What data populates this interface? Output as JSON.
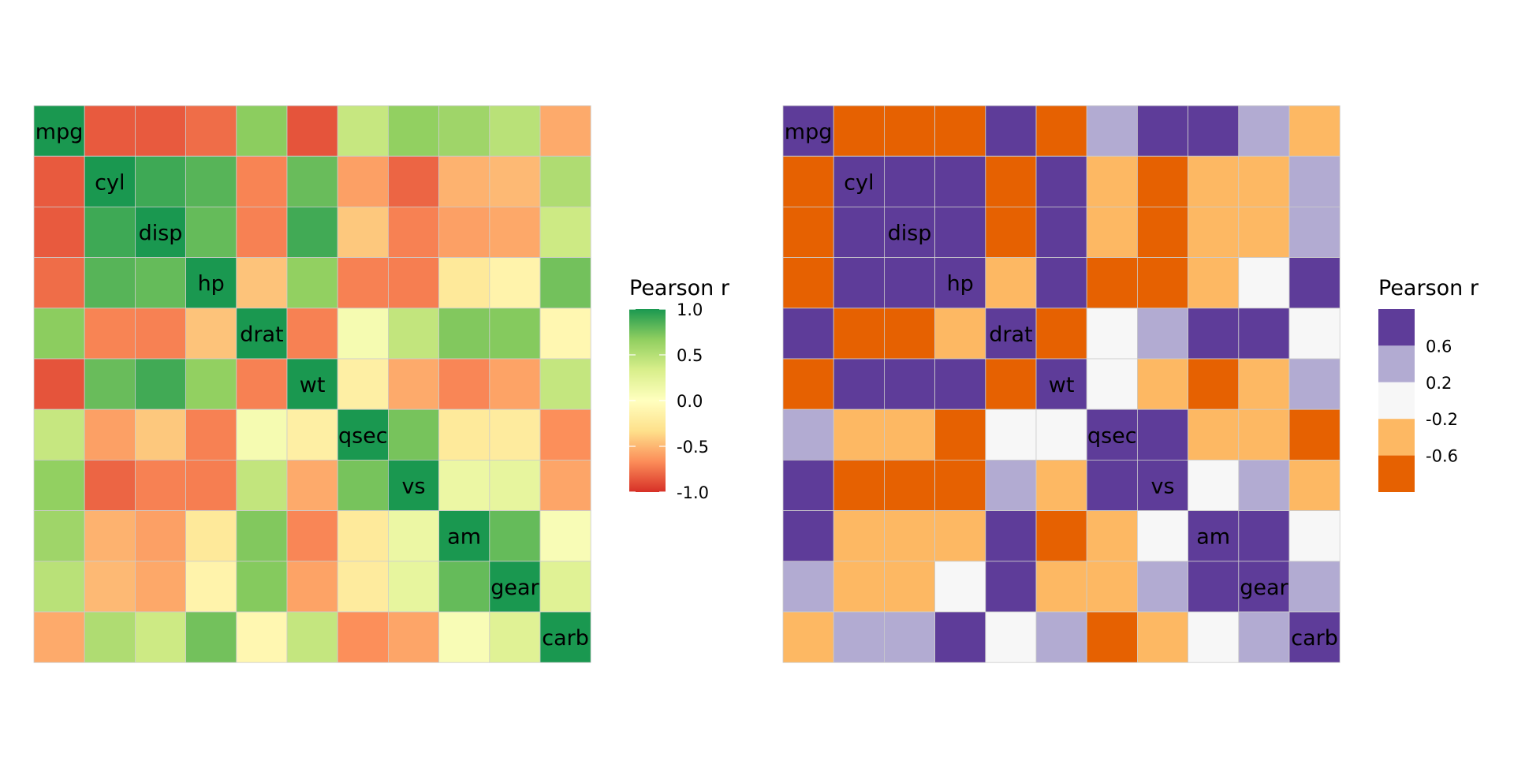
{
  "chart_data": [
    {
      "type": "heatmap",
      "title": "",
      "xlabel": "",
      "ylabel": "",
      "variables": [
        "mpg",
        "cyl",
        "disp",
        "hp",
        "drat",
        "wt",
        "qsec",
        "vs",
        "am",
        "gear",
        "carb"
      ],
      "matrix": [
        [
          1.0,
          -0.85,
          -0.85,
          -0.78,
          0.68,
          -0.87,
          0.42,
          0.66,
          0.6,
          0.48,
          -0.55
        ],
        [
          -0.85,
          1.0,
          0.9,
          0.83,
          -0.7,
          0.78,
          -0.59,
          -0.81,
          -0.52,
          -0.49,
          0.53
        ],
        [
          -0.85,
          0.9,
          1.0,
          0.79,
          -0.71,
          0.89,
          -0.43,
          -0.71,
          -0.59,
          -0.56,
          0.39
        ],
        [
          -0.78,
          0.83,
          0.79,
          1.0,
          -0.45,
          0.66,
          -0.71,
          -0.72,
          -0.24,
          -0.13,
          0.75
        ],
        [
          0.68,
          -0.7,
          -0.71,
          -0.45,
          1.0,
          -0.71,
          0.09,
          0.44,
          0.71,
          0.7,
          -0.09
        ],
        [
          -0.87,
          0.78,
          0.89,
          0.66,
          -0.71,
          1.0,
          -0.17,
          -0.55,
          -0.69,
          -0.58,
          0.43
        ],
        [
          0.42,
          -0.59,
          -0.43,
          -0.71,
          0.09,
          -0.17,
          1.0,
          0.74,
          -0.23,
          -0.21,
          -0.66
        ],
        [
          0.66,
          -0.81,
          -0.71,
          -0.72,
          0.44,
          -0.55,
          0.74,
          1.0,
          0.17,
          0.21,
          -0.57
        ],
        [
          0.6,
          -0.52,
          -0.59,
          -0.24,
          0.71,
          -0.69,
          -0.23,
          0.17,
          1.0,
          0.79,
          0.06
        ],
        [
          0.48,
          -0.49,
          -0.56,
          -0.13,
          0.7,
          -0.58,
          -0.21,
          0.21,
          0.79,
          1.0,
          0.27
        ],
        [
          -0.55,
          0.53,
          0.39,
          0.75,
          -0.09,
          0.43,
          -0.66,
          -0.57,
          0.06,
          0.27,
          1.0
        ]
      ],
      "color_scale": "continuous",
      "palette": [
        "#d73027",
        "#fc8d59",
        "#fee08b",
        "#ffffbf",
        "#d9ef8b",
        "#91cf60",
        "#1a9850"
      ],
      "legend": {
        "title": "Pearson r",
        "placement": "right",
        "ticks": [
          "1.0",
          "0.5",
          "0.0",
          "-0.5",
          "-1.0"
        ],
        "tick_values": [
          1.0,
          0.5,
          0.0,
          -0.5,
          -1.0
        ],
        "range": [
          -1.0,
          1.0
        ]
      },
      "grid": false
    },
    {
      "type": "heatmap",
      "title": "",
      "xlabel": "",
      "ylabel": "",
      "variables": [
        "mpg",
        "cyl",
        "disp",
        "hp",
        "drat",
        "wt",
        "qsec",
        "vs",
        "am",
        "gear",
        "carb"
      ],
      "matrix": [
        [
          1.0,
          -0.85,
          -0.85,
          -0.78,
          0.68,
          -0.87,
          0.42,
          0.66,
          0.6,
          0.48,
          -0.55
        ],
        [
          -0.85,
          1.0,
          0.9,
          0.83,
          -0.7,
          0.78,
          -0.59,
          -0.81,
          -0.52,
          -0.49,
          0.53
        ],
        [
          -0.85,
          0.9,
          1.0,
          0.79,
          -0.71,
          0.89,
          -0.43,
          -0.71,
          -0.59,
          -0.56,
          0.39
        ],
        [
          -0.78,
          0.83,
          0.79,
          1.0,
          -0.45,
          0.66,
          -0.71,
          -0.72,
          -0.24,
          -0.13,
          0.75
        ],
        [
          0.68,
          -0.7,
          -0.71,
          -0.45,
          1.0,
          -0.71,
          0.09,
          0.44,
          0.71,
          0.7,
          -0.09
        ],
        [
          -0.87,
          0.78,
          0.89,
          0.66,
          -0.71,
          1.0,
          -0.17,
          -0.55,
          -0.69,
          -0.58,
          0.43
        ],
        [
          0.42,
          -0.59,
          -0.43,
          -0.71,
          0.09,
          -0.17,
          1.0,
          0.74,
          -0.23,
          -0.21,
          -0.66
        ],
        [
          0.66,
          -0.81,
          -0.71,
          -0.72,
          0.44,
          -0.55,
          0.74,
          1.0,
          0.17,
          0.21,
          -0.57
        ],
        [
          0.6,
          -0.52,
          -0.59,
          -0.24,
          0.71,
          -0.69,
          -0.23,
          0.17,
          1.0,
          0.79,
          0.06
        ],
        [
          0.48,
          -0.49,
          -0.56,
          -0.13,
          0.7,
          -0.58,
          -0.21,
          0.21,
          0.79,
          1.0,
          0.27
        ],
        [
          -0.55,
          0.53,
          0.39,
          0.75,
          -0.09,
          0.43,
          -0.66,
          -0.57,
          0.06,
          0.27,
          1.0
        ]
      ],
      "color_scale": "binned",
      "bins": [
        {
          "from": -1.0,
          "to": -0.6,
          "color": "#e66101"
        },
        {
          "from": -0.6,
          "to": -0.2,
          "color": "#fdb863"
        },
        {
          "from": -0.2,
          "to": 0.2,
          "color": "#f7f7f7"
        },
        {
          "from": 0.2,
          "to": 0.6,
          "color": "#b2abd2"
        },
        {
          "from": 0.6,
          "to": 1.0,
          "color": "#5e3c99"
        }
      ],
      "legend": {
        "title": "Pearson r",
        "placement": "right",
        "ticks": [
          "0.6",
          "0.2",
          "-0.2",
          "-0.6"
        ]
      },
      "grid": false
    }
  ]
}
